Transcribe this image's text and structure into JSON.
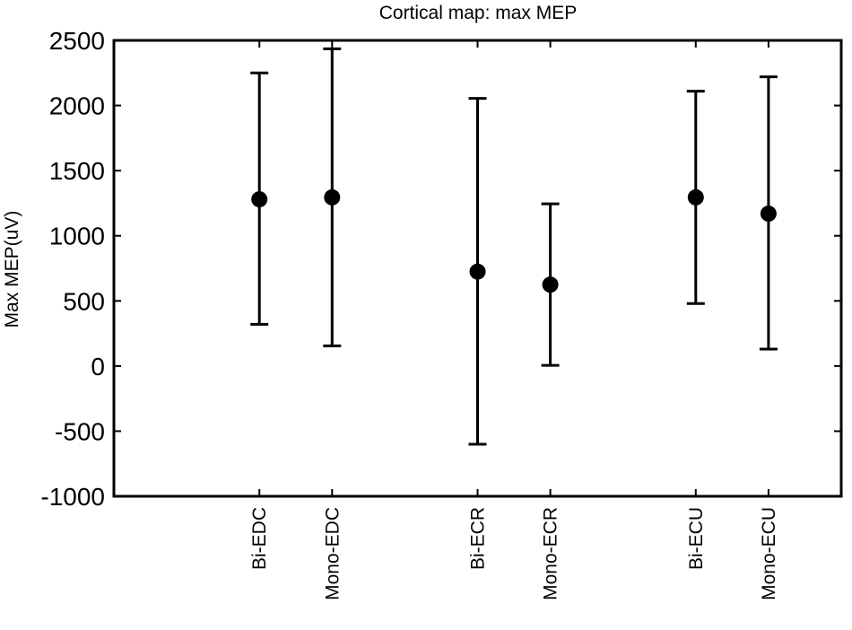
{
  "chart_data": {
    "type": "scatter",
    "title": "Cortical map: max MEP",
    "ylabel": "Max MEP(uV)",
    "xlabel": "",
    "ylim": [
      -1000,
      2500
    ],
    "yticks": [
      2500,
      2000,
      1500,
      1000,
      500,
      0,
      -500,
      -1000
    ],
    "grid": false,
    "legend": "none",
    "series": [
      {
        "points": [
          {
            "category": "Bi-EDC",
            "x": 1,
            "mean": 1280,
            "low": 320,
            "high": 2250
          },
          {
            "category": "Mono-EDC",
            "x": 2,
            "mean": 1295,
            "low": 155,
            "high": 2435
          },
          {
            "category": "Bi-ECR",
            "x": 4,
            "mean": 725,
            "low": -600,
            "high": 2055
          },
          {
            "category": "Mono-ECR",
            "x": 5,
            "mean": 625,
            "low": 5,
            "high": 1245
          },
          {
            "category": "Bi-ECU",
            "x": 7,
            "mean": 1295,
            "low": 480,
            "high": 2110
          },
          {
            "category": "Mono-ECU",
            "x": 8,
            "mean": 1170,
            "low": 130,
            "high": 2220
          }
        ]
      }
    ],
    "xlim": [
      -1,
      9
    ],
    "colors": {
      "marker": "#000000",
      "axis": "#000000",
      "background": "#ffffff"
    }
  }
}
